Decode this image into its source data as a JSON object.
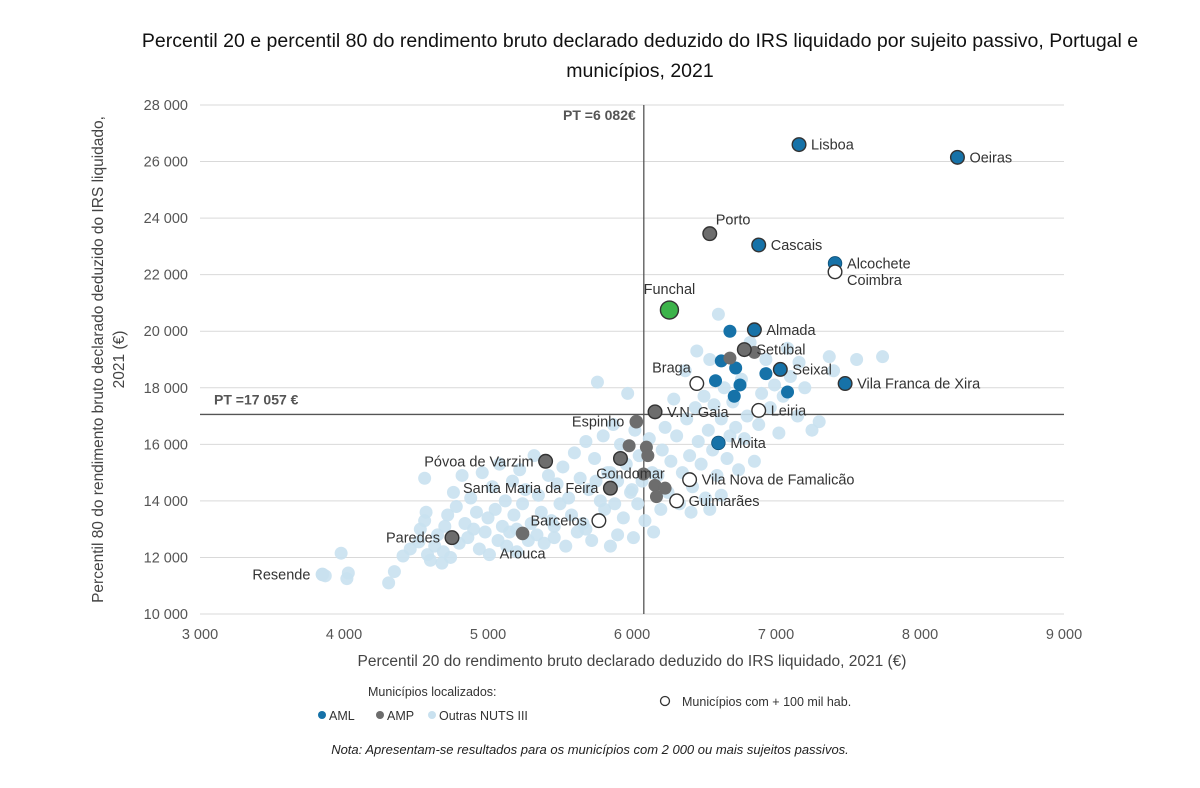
{
  "title_line1": "Percentil 20 e percentil 80 do rendimento bruto declarado deduzido do IRS liquidado por sujeito passivo, Portugal e",
  "title_line2": "municípios, 2021",
  "note": "Nota: Apresentam-se resultados para os municípios com 2 000 ou mais sujeitos passivos.",
  "colors": {
    "aml": "#1672a8",
    "amp": "#6d6d6d",
    "other": "#c9e1ef",
    "funchal": "#3cb34a",
    "outline": "#333333",
    "grid": "#d9d9d9",
    "ref": "#555555"
  },
  "chart_data": {
    "type": "scatter",
    "xlabel": "Percentil 20 do rendimento bruto declarado deduzido do IRS liquidado, 2021 (€)",
    "ylabel": "Percentil 80 do rendimento bruto declarado deduzido do IRS liquidado, 2021 (€)",
    "xlim": [
      3000,
      9000
    ],
    "ylim": [
      10000,
      28000
    ],
    "x_ticks": [
      3000,
      4000,
      5000,
      6000,
      7000,
      8000,
      9000
    ],
    "x_tick_labels": [
      "3 000",
      "4 000",
      "5 000",
      "6 000",
      "7 000",
      "8 000",
      "9 000"
    ],
    "y_ticks": [
      10000,
      12000,
      14000,
      16000,
      18000,
      20000,
      22000,
      24000,
      26000,
      28000
    ],
    "y_tick_labels": [
      "10 000",
      "12 000",
      "14 000",
      "16 000",
      "18 000",
      "20 000",
      "22 000",
      "24 000",
      "26 000",
      "28 000"
    ],
    "grid": true,
    "ref_lines": {
      "x": 6082,
      "x_label": "PT =6 082€",
      "y": 17057,
      "y_label": "PT =17 057 €"
    },
    "legend": {
      "header": "Municípios localizados:",
      "aml": "AML",
      "amp": "AMP",
      "other": "Outras NUTS III",
      "large": "Municípios com + 100 mil hab."
    },
    "labeled_points": [
      {
        "name": "Lisboa",
        "x": 7160,
        "y": 26600,
        "group": "aml",
        "large": true,
        "pos": "right"
      },
      {
        "name": "Oeiras",
        "x": 8260,
        "y": 26150,
        "group": "aml",
        "large": true,
        "pos": "right"
      },
      {
        "name": "Porto",
        "x": 6540,
        "y": 23450,
        "group": "amp",
        "large": true,
        "pos": "upright"
      },
      {
        "name": "Cascais",
        "x": 6880,
        "y": 23050,
        "group": "aml",
        "large": true,
        "pos": "right"
      },
      {
        "name": "Alcochete",
        "x": 7410,
        "y": 22400,
        "group": "aml",
        "large": false,
        "pos": "right"
      },
      {
        "name": "Coimbra",
        "x": 7410,
        "y": 22100,
        "group": "other",
        "large": true,
        "pos": "rightdown"
      },
      {
        "name": "Funchal",
        "x": 6260,
        "y": 20750,
        "group": "funchal",
        "large": true,
        "pos": "above"
      },
      {
        "name": "Almada",
        "x": 6850,
        "y": 20050,
        "group": "aml",
        "large": true,
        "pos": "right"
      },
      {
        "name": "Setúbal",
        "x": 6780,
        "y": 19350,
        "group": "amp",
        "large": true,
        "pos": "right"
      },
      {
        "name": "Braga",
        "x": 6450,
        "y": 18150,
        "group": "other",
        "large": true,
        "pos": "aboveleft"
      },
      {
        "name": "Seixal",
        "x": 7030,
        "y": 18650,
        "group": "aml",
        "large": true,
        "pos": "right"
      },
      {
        "name": "Vila Franca de Xira",
        "x": 7480,
        "y": 18150,
        "group": "aml",
        "large": true,
        "pos": "right"
      },
      {
        "name": "V.N. Gaia",
        "x": 6160,
        "y": 17150,
        "group": "amp",
        "large": true,
        "pos": "right"
      },
      {
        "name": "Leiria",
        "x": 6880,
        "y": 17200,
        "group": "other",
        "large": true,
        "pos": "right"
      },
      {
        "name": "Espinho",
        "x": 6030,
        "y": 16800,
        "group": "amp",
        "large": false,
        "pos": "left"
      },
      {
        "name": "Moita",
        "x": 6600,
        "y": 16050,
        "group": "aml",
        "large": false,
        "pos": "right"
      },
      {
        "name": "Póvoa de Varzim",
        "x": 5400,
        "y": 15400,
        "group": "amp",
        "large": true,
        "pos": "left"
      },
      {
        "name": "Gondomar",
        "x": 5920,
        "y": 15500,
        "group": "amp",
        "large": true,
        "pos": "belowleft"
      },
      {
        "name": "Vila Nova de Famalicão",
        "x": 6400,
        "y": 14750,
        "group": "other",
        "large": true,
        "pos": "right"
      },
      {
        "name": "Santa Maria da Feira",
        "x": 5850,
        "y": 14450,
        "group": "amp",
        "large": true,
        "pos": "left"
      },
      {
        "name": "Guimarães",
        "x": 6310,
        "y": 14000,
        "group": "other",
        "large": true,
        "pos": "right"
      },
      {
        "name": "Barcelos",
        "x": 5770,
        "y": 13300,
        "group": "other",
        "large": true,
        "pos": "left"
      },
      {
        "name": "Paredes",
        "x": 4750,
        "y": 12700,
        "group": "amp",
        "large": true,
        "pos": "left"
      },
      {
        "name": "Arouca",
        "x": 5240,
        "y": 12850,
        "group": "amp",
        "large": false,
        "pos": "below"
      },
      {
        "name": "Resende",
        "x": 3850,
        "y": 11400,
        "group": "other",
        "large": false,
        "pos": "left"
      }
    ],
    "amp_other_points": [
      {
        "x": 6680,
        "y": 19050
      },
      {
        "x": 6850,
        "y": 19250
      },
      {
        "x": 5980,
        "y": 15950
      },
      {
        "x": 6100,
        "y": 15900
      },
      {
        "x": 6110,
        "y": 15600
      },
      {
        "x": 6080,
        "y": 14950
      },
      {
        "x": 6160,
        "y": 14550
      },
      {
        "x": 6230,
        "y": 14450
      },
      {
        "x": 6170,
        "y": 14150
      }
    ],
    "aml_other_points": [
      {
        "x": 6620,
        "y": 18950
      },
      {
        "x": 6680,
        "y": 20000
      },
      {
        "x": 6720,
        "y": 18700
      },
      {
        "x": 6930,
        "y": 18500
      },
      {
        "x": 6750,
        "y": 18100
      },
      {
        "x": 6710,
        "y": 17700
      },
      {
        "x": 6580,
        "y": 18250
      },
      {
        "x": 7080,
        "y": 17850
      }
    ],
    "other_points": [
      {
        "x": 3870,
        "y": 11350
      },
      {
        "x": 3980,
        "y": 12150
      },
      {
        "x": 4020,
        "y": 11250
      },
      {
        "x": 4030,
        "y": 11450
      },
      {
        "x": 4310,
        "y": 11100
      },
      {
        "x": 4350,
        "y": 11500
      },
      {
        "x": 4410,
        "y": 12050
      },
      {
        "x": 4460,
        "y": 12300
      },
      {
        "x": 4520,
        "y": 12550
      },
      {
        "x": 4530,
        "y": 13000
      },
      {
        "x": 4560,
        "y": 13300
      },
      {
        "x": 4570,
        "y": 13600
      },
      {
        "x": 4560,
        "y": 14800
      },
      {
        "x": 4580,
        "y": 12100
      },
      {
        "x": 4600,
        "y": 11900
      },
      {
        "x": 4630,
        "y": 12400
      },
      {
        "x": 4650,
        "y": 12800
      },
      {
        "x": 4680,
        "y": 11800
      },
      {
        "x": 4690,
        "y": 12200
      },
      {
        "x": 4700,
        "y": 13100
      },
      {
        "x": 4720,
        "y": 13500
      },
      {
        "x": 4740,
        "y": 12000
      },
      {
        "x": 4760,
        "y": 14300
      },
      {
        "x": 4780,
        "y": 13800
      },
      {
        "x": 4800,
        "y": 12500
      },
      {
        "x": 4820,
        "y": 14900
      },
      {
        "x": 4840,
        "y": 13200
      },
      {
        "x": 4860,
        "y": 12700
      },
      {
        "x": 4880,
        "y": 14100
      },
      {
        "x": 4900,
        "y": 13000
      },
      {
        "x": 4920,
        "y": 13600
      },
      {
        "x": 4940,
        "y": 12300
      },
      {
        "x": 4960,
        "y": 15000
      },
      {
        "x": 4980,
        "y": 12900
      },
      {
        "x": 5000,
        "y": 13400
      },
      {
        "x": 5010,
        "y": 12100
      },
      {
        "x": 5030,
        "y": 14500
      },
      {
        "x": 5050,
        "y": 13700
      },
      {
        "x": 5070,
        "y": 12600
      },
      {
        "x": 5080,
        "y": 15300
      },
      {
        "x": 5100,
        "y": 13100
      },
      {
        "x": 5120,
        "y": 14000
      },
      {
        "x": 5130,
        "y": 12400
      },
      {
        "x": 5150,
        "y": 12900
      },
      {
        "x": 5170,
        "y": 14700
      },
      {
        "x": 5180,
        "y": 13500
      },
      {
        "x": 5200,
        "y": 12200
      },
      {
        "x": 5220,
        "y": 15100
      },
      {
        "x": 5240,
        "y": 13900
      },
      {
        "x": 5260,
        "y": 14400
      },
      {
        "x": 5280,
        "y": 12600
      },
      {
        "x": 5300,
        "y": 13200
      },
      {
        "x": 5320,
        "y": 15600
      },
      {
        "x": 5340,
        "y": 12800
      },
      {
        "x": 5350,
        "y": 14200
      },
      {
        "x": 5370,
        "y": 13600
      },
      {
        "x": 5390,
        "y": 12500
      },
      {
        "x": 5420,
        "y": 14900
      },
      {
        "x": 5440,
        "y": 13300
      },
      {
        "x": 5460,
        "y": 12700
      },
      {
        "x": 5480,
        "y": 14600
      },
      {
        "x": 5500,
        "y": 13900
      },
      {
        "x": 5520,
        "y": 15200
      },
      {
        "x": 5540,
        "y": 12400
      },
      {
        "x": 5560,
        "y": 14100
      },
      {
        "x": 5580,
        "y": 13500
      },
      {
        "x": 5600,
        "y": 15700
      },
      {
        "x": 5620,
        "y": 12900
      },
      {
        "x": 5640,
        "y": 14800
      },
      {
        "x": 5660,
        "y": 13200
      },
      {
        "x": 5680,
        "y": 16100
      },
      {
        "x": 5700,
        "y": 14400
      },
      {
        "x": 5720,
        "y": 12600
      },
      {
        "x": 5740,
        "y": 15500
      },
      {
        "x": 5760,
        "y": 18200
      },
      {
        "x": 5780,
        "y": 14000
      },
      {
        "x": 5800,
        "y": 16300
      },
      {
        "x": 5810,
        "y": 13700
      },
      {
        "x": 5830,
        "y": 15000
      },
      {
        "x": 5850,
        "y": 12400
      },
      {
        "x": 5870,
        "y": 16700
      },
      {
        "x": 5880,
        "y": 13900
      },
      {
        "x": 5900,
        "y": 14700
      },
      {
        "x": 5920,
        "y": 16000
      },
      {
        "x": 5940,
        "y": 13400
      },
      {
        "x": 5960,
        "y": 15300
      },
      {
        "x": 5970,
        "y": 17800
      },
      {
        "x": 5990,
        "y": 14300
      },
      {
        "x": 6010,
        "y": 12700
      },
      {
        "x": 6020,
        "y": 16500
      },
      {
        "x": 6040,
        "y": 13900
      },
      {
        "x": 6050,
        "y": 15600
      },
      {
        "x": 6070,
        "y": 14700
      },
      {
        "x": 6090,
        "y": 13300
      },
      {
        "x": 6120,
        "y": 16200
      },
      {
        "x": 6140,
        "y": 15000
      },
      {
        "x": 6150,
        "y": 12900
      },
      {
        "x": 6180,
        "y": 14900
      },
      {
        "x": 6200,
        "y": 13700
      },
      {
        "x": 6210,
        "y": 15800
      },
      {
        "x": 6230,
        "y": 16600
      },
      {
        "x": 6250,
        "y": 14300
      },
      {
        "x": 6270,
        "y": 15400
      },
      {
        "x": 6290,
        "y": 17600
      },
      {
        "x": 6310,
        "y": 16300
      },
      {
        "x": 6330,
        "y": 13900
      },
      {
        "x": 6350,
        "y": 15000
      },
      {
        "x": 6370,
        "y": 18600
      },
      {
        "x": 6380,
        "y": 16900
      },
      {
        "x": 6400,
        "y": 15600
      },
      {
        "x": 6420,
        "y": 14500
      },
      {
        "x": 6440,
        "y": 17300
      },
      {
        "x": 6450,
        "y": 19300
      },
      {
        "x": 6460,
        "y": 16100
      },
      {
        "x": 6480,
        "y": 15300
      },
      {
        "x": 6500,
        "y": 17700
      },
      {
        "x": 6510,
        "y": 14100
      },
      {
        "x": 6530,
        "y": 16500
      },
      {
        "x": 6540,
        "y": 19000
      },
      {
        "x": 6560,
        "y": 15800
      },
      {
        "x": 6570,
        "y": 17400
      },
      {
        "x": 6590,
        "y": 14900
      },
      {
        "x": 6600,
        "y": 20600
      },
      {
        "x": 6620,
        "y": 16900
      },
      {
        "x": 6640,
        "y": 18000
      },
      {
        "x": 6660,
        "y": 15500
      },
      {
        "x": 6680,
        "y": 16300
      },
      {
        "x": 6700,
        "y": 17500
      },
      {
        "x": 6720,
        "y": 16600
      },
      {
        "x": 6740,
        "y": 15100
      },
      {
        "x": 6760,
        "y": 18300
      },
      {
        "x": 6780,
        "y": 16200
      },
      {
        "x": 6800,
        "y": 17000
      },
      {
        "x": 6820,
        "y": 19600
      },
      {
        "x": 6850,
        "y": 15400
      },
      {
        "x": 6880,
        "y": 16700
      },
      {
        "x": 6900,
        "y": 17800
      },
      {
        "x": 6930,
        "y": 19000
      },
      {
        "x": 6960,
        "y": 17300
      },
      {
        "x": 6990,
        "y": 18100
      },
      {
        "x": 7020,
        "y": 16400
      },
      {
        "x": 7050,
        "y": 17700
      },
      {
        "x": 7080,
        "y": 19400
      },
      {
        "x": 7100,
        "y": 18400
      },
      {
        "x": 7150,
        "y": 17000
      },
      {
        "x": 7200,
        "y": 18000
      },
      {
        "x": 7250,
        "y": 16500
      },
      {
        "x": 7300,
        "y": 16800
      },
      {
        "x": 7370,
        "y": 19100
      },
      {
        "x": 7400,
        "y": 18600
      },
      {
        "x": 7560,
        "y": 19000
      },
      {
        "x": 7740,
        "y": 19100
      },
      {
        "x": 7160,
        "y": 18900
      },
      {
        "x": 6410,
        "y": 13600
      },
      {
        "x": 6540,
        "y": 13700
      },
      {
        "x": 6620,
        "y": 14200
      },
      {
        "x": 5900,
        "y": 12800
      },
      {
        "x": 5680,
        "y": 13000
      },
      {
        "x": 5200,
        "y": 13000
      },
      {
        "x": 5460,
        "y": 13100
      },
      {
        "x": 5850,
        "y": 15000
      },
      {
        "x": 6000,
        "y": 14400
      },
      {
        "x": 5750,
        "y": 14700
      }
    ]
  }
}
